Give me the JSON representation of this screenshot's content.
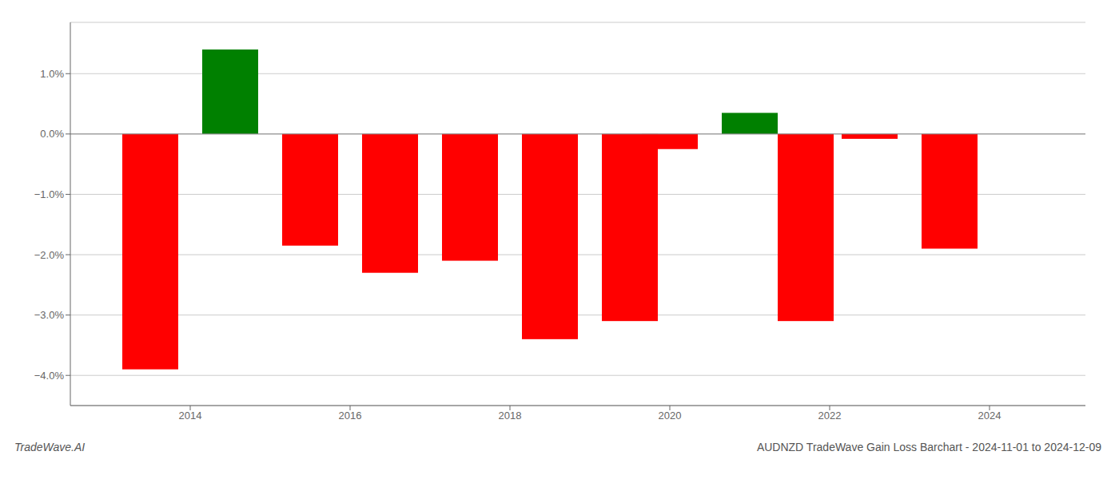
{
  "chart_data": {
    "type": "bar",
    "x": [
      2013.5,
      2014.5,
      2015.5,
      2016.5,
      2017.5,
      2018.5,
      2019.5,
      2020.0,
      2021.0,
      2021.7,
      2022.5,
      2023.5
    ],
    "values": [
      -3.9,
      1.4,
      -1.85,
      -2.3,
      -2.1,
      -3.4,
      -3.1,
      -0.25,
      0.35,
      -3.1,
      -0.08,
      -1.9
    ],
    "colors": [
      "red",
      "green",
      "red",
      "red",
      "red",
      "red",
      "red",
      "red",
      "green",
      "red",
      "red",
      "red"
    ],
    "xlim": [
      2012.5,
      2025.2
    ],
    "xticks": [
      2014,
      2016,
      2018,
      2020,
      2022,
      2024
    ],
    "ylim": [
      -4.5,
      1.85
    ],
    "yticks": [
      {
        "value": -4.0,
        "label": "−4.0%"
      },
      {
        "value": -3.0,
        "label": "−3.0%"
      },
      {
        "value": -2.0,
        "label": "−2.0%"
      },
      {
        "value": -1.0,
        "label": "−1.0%"
      },
      {
        "value": 0.0,
        "label": "0.0%"
      },
      {
        "value": 1.0,
        "label": "1.0%"
      }
    ],
    "grid": true,
    "annotations": [
      "TradeWave.AI",
      "AUDNZD TradeWave Gain Loss Barchart - 2024-11-01 to 2024-12-09"
    ]
  }
}
